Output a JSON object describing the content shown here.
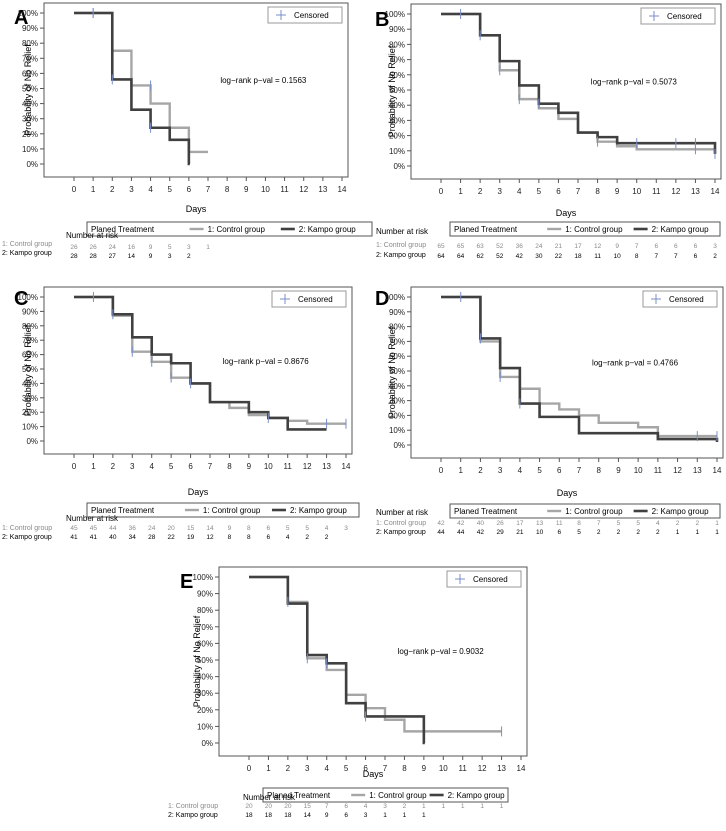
{
  "shared": {
    "ylabel": "Probability of No Relief",
    "xlabel": "Days",
    "censored_label": "Censored",
    "legend_title": "Planed Treatment",
    "legend_control": "1: Control group",
    "legend_kampo": "2: Kampo group",
    "at_risk_title": "Number at risk",
    "row_control": "1: Control group",
    "row_kampo": "2: Kampo group",
    "y_ticks": [
      "0%",
      "10%",
      "20%",
      "30%",
      "40%",
      "50%",
      "60%",
      "70%",
      "80%",
      "90%",
      "100%"
    ],
    "x_ticks": [
      0,
      1,
      2,
      3,
      4,
      5,
      6,
      7,
      8,
      9,
      10,
      11,
      12,
      13,
      14
    ],
    "colors": {
      "control": "#a6a6a6",
      "kampo": "#404040",
      "censor": "#7b8fc8",
      "axis": "#555555"
    }
  },
  "chart_data": [
    {
      "type": "line",
      "panel_label": "A",
      "pval": "log−rank p−val = 0.1563",
      "xlim": [
        0,
        14
      ],
      "ylim": [
        0,
        1
      ],
      "series": [
        {
          "name": "1: Control group",
          "x": [
            0,
            2,
            3,
            4,
            5,
            6,
            7
          ],
          "y": [
            1.0,
            0.75,
            0.52,
            0.4,
            0.24,
            0.08,
            0.08
          ]
        },
        {
          "name": "2: Kampo group",
          "x": [
            0,
            2,
            3,
            4,
            5,
            6,
            6.05
          ],
          "y": [
            1.0,
            0.56,
            0.36,
            0.24,
            0.16,
            0.0,
            0.0
          ]
        }
      ],
      "censored": [
        {
          "series": 0,
          "x": 1,
          "y": 1.0
        },
        {
          "series": 0,
          "x": 4,
          "y": 0.52
        },
        {
          "series": 1,
          "x": 1,
          "y": 1.0
        },
        {
          "series": 1,
          "x": 2,
          "y": 0.56
        },
        {
          "series": 1,
          "x": 4,
          "y": 0.24
        }
      ],
      "at_risk": {
        "control": [
          26,
          26,
          24,
          16,
          9,
          5,
          3,
          1
        ],
        "kampo": [
          28,
          28,
          27,
          14,
          9,
          3,
          2
        ]
      }
    },
    {
      "type": "line",
      "panel_label": "B",
      "pval": "log−rank p−val = 0.5073",
      "xlim": [
        0,
        14
      ],
      "ylim": [
        0,
        1
      ],
      "series": [
        {
          "name": "1: Control group",
          "x": [
            0,
            2,
            3,
            4,
            5,
            6,
            7,
            8,
            9,
            10,
            14
          ],
          "y": [
            1.0,
            0.86,
            0.63,
            0.44,
            0.38,
            0.31,
            0.22,
            0.16,
            0.13,
            0.11,
            0.08
          ]
        },
        {
          "name": "2: Kampo group",
          "x": [
            0,
            2,
            3,
            4,
            5,
            6,
            7,
            8,
            9,
            14
          ],
          "y": [
            1.0,
            0.86,
            0.69,
            0.53,
            0.41,
            0.35,
            0.22,
            0.19,
            0.15,
            0.08
          ]
        }
      ],
      "censored": [
        {
          "series": 0,
          "x": 1,
          "y": 1.0
        },
        {
          "series": 0,
          "x": 3,
          "y": 0.63
        },
        {
          "series": 0,
          "x": 4,
          "y": 0.44
        },
        {
          "series": 0,
          "x": 8,
          "y": 0.16
        },
        {
          "series": 0,
          "x": 13,
          "y": 0.11
        },
        {
          "series": 1,
          "x": 2,
          "y": 0.86
        },
        {
          "series": 1,
          "x": 5,
          "y": 0.41
        },
        {
          "series": 1,
          "x": 10,
          "y": 0.15
        },
        {
          "series": 1,
          "x": 12,
          "y": 0.15
        },
        {
          "series": 1,
          "x": 13,
          "y": 0.15
        },
        {
          "series": 1,
          "x": 14,
          "y": 0.08
        }
      ],
      "at_risk": {
        "control": [
          65,
          65,
          63,
          52,
          36,
          24,
          21,
          17,
          12,
          9,
          7,
          6,
          6,
          6,
          3
        ],
        "kampo": [
          64,
          64,
          62,
          52,
          42,
          30,
          22,
          18,
          11,
          10,
          8,
          7,
          7,
          6,
          2
        ]
      }
    },
    {
      "type": "line",
      "panel_label": "C",
      "pval": "log−rank p−val = 0.8676",
      "xlim": [
        0,
        14
      ],
      "ylim": [
        0,
        1
      ],
      "series": [
        {
          "name": "1: Control group",
          "x": [
            0,
            2,
            3,
            4,
            5,
            6,
            7,
            8,
            9,
            10,
            11,
            12,
            14
          ],
          "y": [
            1.0,
            0.87,
            0.62,
            0.55,
            0.44,
            0.4,
            0.27,
            0.23,
            0.18,
            0.16,
            0.14,
            0.12,
            0.12
          ]
        },
        {
          "name": "2: Kampo group",
          "x": [
            0,
            2,
            3,
            4,
            5,
            6,
            7,
            9,
            10,
            11,
            13
          ],
          "y": [
            1.0,
            0.88,
            0.72,
            0.6,
            0.54,
            0.4,
            0.27,
            0.2,
            0.16,
            0.08,
            0.08
          ]
        }
      ],
      "censored": [
        {
          "series": 0,
          "x": 1,
          "y": 1.0
        },
        {
          "series": 0,
          "x": 3,
          "y": 0.62
        },
        {
          "series": 0,
          "x": 4,
          "y": 0.55
        },
        {
          "series": 0,
          "x": 5,
          "y": 0.44
        },
        {
          "series": 0,
          "x": 13,
          "y": 0.12
        },
        {
          "series": 0,
          "x": 14,
          "y": 0.12
        },
        {
          "series": 1,
          "x": 2,
          "y": 0.88
        },
        {
          "series": 1,
          "x": 6,
          "y": 0.4
        },
        {
          "series": 1,
          "x": 10,
          "y": 0.16
        }
      ],
      "at_risk": {
        "control": [
          45,
          45,
          44,
          36,
          24,
          20,
          15,
          14,
          9,
          8,
          6,
          5,
          5,
          4,
          3
        ],
        "kampo": [
          41,
          41,
          40,
          34,
          28,
          22,
          19,
          12,
          8,
          8,
          6,
          4,
          2,
          2
        ]
      }
    },
    {
      "type": "line",
      "panel_label": "D",
      "pval": "log−rank p−val = 0.4766",
      "xlim": [
        0,
        14
      ],
      "ylim": [
        0,
        1
      ],
      "series": [
        {
          "name": "1: Control group",
          "x": [
            0,
            2,
            3,
            4,
            5,
            6,
            7,
            8,
            10,
            11,
            14
          ],
          "y": [
            1.0,
            0.7,
            0.46,
            0.38,
            0.28,
            0.24,
            0.2,
            0.15,
            0.12,
            0.06,
            0.06
          ]
        },
        {
          "name": "2: Kampo group",
          "x": [
            0,
            2,
            3,
            4,
            5,
            7,
            11,
            14
          ],
          "y": [
            1.0,
            0.72,
            0.52,
            0.28,
            0.19,
            0.08,
            0.04,
            0.02
          ]
        }
      ],
      "censored": [
        {
          "series": 0,
          "x": 1,
          "y": 1.0
        },
        {
          "series": 0,
          "x": 3,
          "y": 0.46
        },
        {
          "series": 0,
          "x": 13,
          "y": 0.06
        },
        {
          "series": 0,
          "x": 14,
          "y": 0.06
        },
        {
          "series": 1,
          "x": 2,
          "y": 0.72
        },
        {
          "series": 1,
          "x": 4,
          "y": 0.28
        }
      ],
      "at_risk": {
        "control": [
          42,
          42,
          40,
          26,
          17,
          13,
          11,
          8,
          7,
          5,
          5,
          4,
          2,
          2,
          1
        ],
        "kampo": [
          44,
          44,
          42,
          29,
          21,
          10,
          6,
          5,
          2,
          2,
          2,
          2,
          1,
          1,
          1
        ]
      }
    },
    {
      "type": "line",
      "panel_label": "E",
      "pval": "log−rank p−val = 0.9032",
      "xlim": [
        0,
        14
      ],
      "ylim": [
        0,
        1
      ],
      "series": [
        {
          "name": "1: Control group",
          "x": [
            0,
            2,
            3,
            4,
            5,
            6,
            7,
            8,
            13
          ],
          "y": [
            1.0,
            0.85,
            0.51,
            0.44,
            0.29,
            0.21,
            0.14,
            0.07,
            0.07
          ]
        },
        {
          "name": "2: Kampo group",
          "x": [
            0,
            2,
            3,
            4,
            5,
            6,
            9,
            9.05
          ],
          "y": [
            1.0,
            0.84,
            0.53,
            0.48,
            0.24,
            0.16,
            0.0,
            0.0
          ]
        }
      ],
      "censored": [
        {
          "series": 0,
          "x": 2,
          "y": 0.85
        },
        {
          "series": 0,
          "x": 3,
          "y": 0.51
        },
        {
          "series": 0,
          "x": 13,
          "y": 0.07
        },
        {
          "series": 1,
          "x": 4,
          "y": 0.48
        },
        {
          "series": 1,
          "x": 6,
          "y": 0.16
        }
      ],
      "at_risk": {
        "control": [
          20,
          20,
          20,
          15,
          7,
          6,
          4,
          3,
          2,
          1,
          1,
          1,
          1,
          1
        ],
        "kampo": [
          18,
          18,
          18,
          14,
          9,
          6,
          3,
          1,
          1,
          1
        ]
      }
    }
  ]
}
